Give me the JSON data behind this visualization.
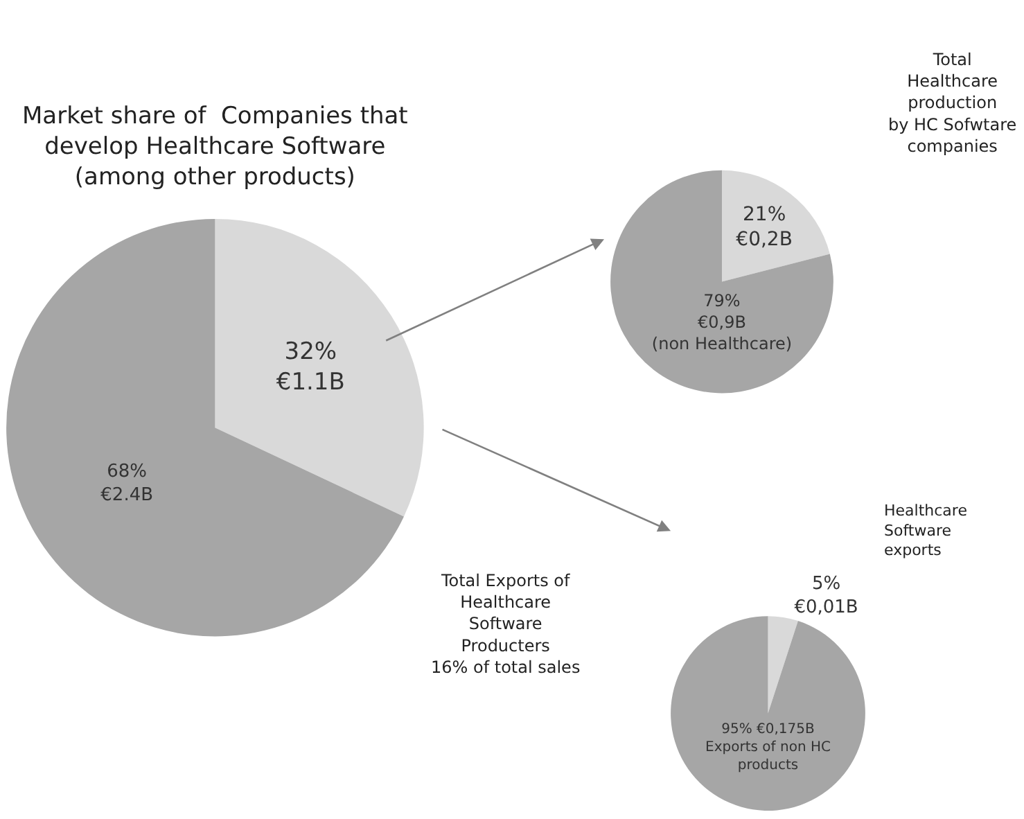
{
  "chart_data": [
    {
      "type": "pie",
      "title": "Market share of  Companies that\ndevelop Healthcare Software\n(among other products)",
      "categories": [
        null,
        null
      ],
      "values": [
        32,
        68
      ],
      "colors": [
        "#d9d9d9",
        "#a6a6a6"
      ],
      "value_labels": [
        "32%\n€1.1B",
        "68%\n€2.4B"
      ]
    },
    {
      "type": "pie",
      "title": "Total\nHealthcare\nproduction\nby HC Sofwtare\ncompanies",
      "categories": [
        null,
        null
      ],
      "values": [
        21,
        79
      ],
      "colors": [
        "#d9d9d9",
        "#a6a6a6"
      ],
      "value_labels": [
        "21%\n€0,2B",
        "79%\n€0,9B\n(non Healthcare)"
      ]
    },
    {
      "type": "pie",
      "title": "Total Exports of\nHealthcare\nSoftware\nProducters\n16% of total sales",
      "categories": [
        null,
        null
      ],
      "values": [
        5,
        95
      ],
      "colors": [
        "#d9d9d9",
        "#a6a6a6"
      ],
      "value_labels": [
        "5%\n€0,01B",
        "95% €0,175B\nExports of non HC\nproducts"
      ],
      "annotations": [
        "Healthcare\nSoftware\nexports"
      ]
    }
  ]
}
